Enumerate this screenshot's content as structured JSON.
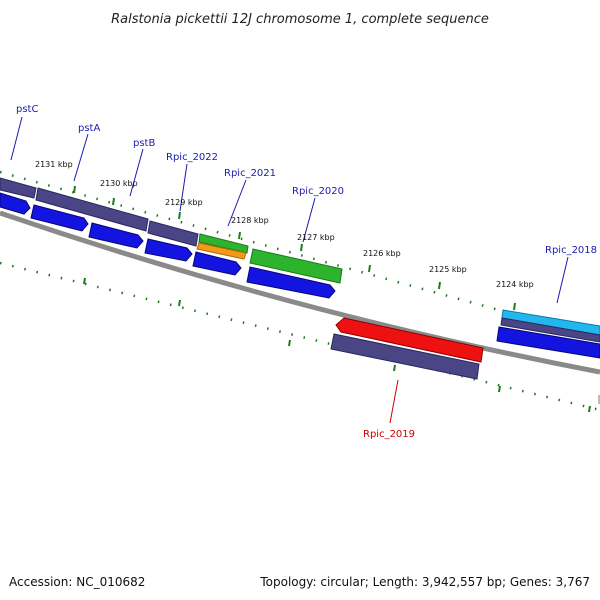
{
  "title": "Ralstonia pickettii 12J chromosome 1, complete sequence",
  "footer": {
    "accession": "Accession: NC_010682",
    "summary": "Topology: circular; Length: 3,942,557 bp; Genes: 3,767"
  },
  "ticks": [
    "2131 kbp",
    "2130 kbp",
    "2129 kbp",
    "2128 kbp",
    "2127 kbp",
    "2126 kbp",
    "2125 kbp",
    "2124 kbp"
  ],
  "genes": {
    "pstC": "pstC",
    "pstA": "pstA",
    "pstB": "pstB",
    "rpic2022": "Rpic_2022",
    "rpic2021": "Rpic_2021",
    "rpic2020": "Rpic_2020",
    "rpic2018": "Rpic_2018",
    "rpic2019": "Rpic_2019"
  },
  "colors": {
    "label_blue": "#1b1bb0",
    "label_red": "#cc0000",
    "tick_green": "#1f7a1f",
    "backbone": "#8a8a8a",
    "cds_blue": "#1414e0",
    "cds_purple": "#4a4585",
    "green": "#2cb52c",
    "orange": "#f39a1a",
    "red": "#ee1111",
    "cyan": "#22b8ee"
  }
}
